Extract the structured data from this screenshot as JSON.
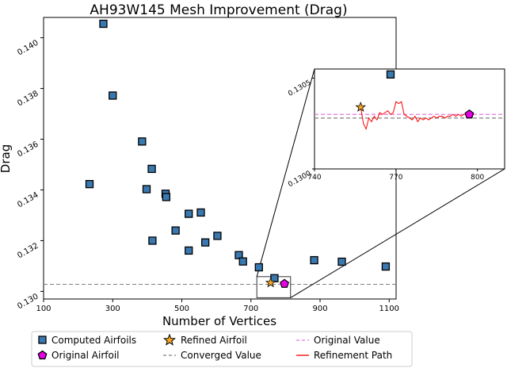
{
  "chart_data": {
    "type": "scatter",
    "title": "AH93W145 Mesh Improvement (Drag)",
    "xlabel": "Number of Vertices",
    "ylabel": "Drag",
    "xlim": [
      100,
      1120
    ],
    "ylim": [
      0.1297,
      0.1408
    ],
    "xticks": [
      100,
      300,
      500,
      700,
      900,
      1100
    ],
    "yticks": [
      0.13,
      0.132,
      0.134,
      0.136,
      0.138,
      0.14
    ],
    "ytick_labels": [
      "0.130",
      "0.132",
      "0.134",
      "0.136",
      "0.138",
      "0.140"
    ],
    "grid": false,
    "legend_position": "bottom",
    "converged_value": 0.13028,
    "original_value": 0.1303,
    "series": [
      {
        "name": "Computed Airfoils",
        "marker": "square",
        "color": "#3a78b0",
        "x": [
          233,
          273,
          300,
          385,
          398,
          413,
          415,
          453,
          455,
          482,
          520,
          520,
          555,
          568,
          603,
          665,
          677,
          723,
          768,
          883,
          963,
          1090
        ],
        "y": [
          0.13423,
          0.14055,
          0.13772,
          0.13591,
          0.13403,
          0.13483,
          0.132,
          0.13385,
          0.13372,
          0.1324,
          0.13306,
          0.13161,
          0.13311,
          0.13193,
          0.13219,
          0.13143,
          0.13118,
          0.13095,
          0.13052,
          0.13123,
          0.13117,
          0.13098
        ]
      },
      {
        "name": "Original Airfoil",
        "marker": "pentagon",
        "color": "#e600e6",
        "x": [
          797
        ],
        "y": [
          0.1303
        ]
      },
      {
        "name": "Refined Airfoil",
        "marker": "star",
        "color": "#f5a623",
        "x": [
          757
        ],
        "y": [
          0.13034
        ]
      }
    ],
    "lines": [
      {
        "name": "Converged Value",
        "style": "dashed",
        "color": "#808080"
      },
      {
        "name": "Original Value",
        "style": "dashed",
        "color": "#e377e3"
      },
      {
        "name": "Refinement Path",
        "style": "solid",
        "color": "#ff0000"
      }
    ],
    "inset": {
      "xlim": [
        740,
        810
      ],
      "ylim": [
        0.13,
        0.13055
      ],
      "xticks": [
        740,
        770,
        800
      ],
      "yticks": [
        0.13,
        0.1305
      ],
      "ytick_labels": [
        "0.1300",
        "0.1305"
      ],
      "converged_value": 0.13028,
      "original_value": 0.1303,
      "refinement_path": {
        "x": [
          757,
          758,
          759,
          760,
          761,
          762,
          763,
          764,
          765,
          766,
          767,
          768,
          769,
          770,
          771,
          772,
          773,
          774,
          775,
          776,
          777,
          778,
          779,
          780,
          781,
          782,
          783,
          784,
          785,
          786,
          787,
          788,
          789,
          790,
          791,
          792,
          793,
          794,
          795,
          796,
          797
        ],
        "y": [
          0.13034,
          0.13025,
          0.13022,
          0.13028,
          0.13026,
          0.13029,
          0.13027,
          0.13031,
          0.1303,
          0.13031,
          0.13032,
          0.1303,
          0.13031,
          0.13037,
          0.13036,
          0.13037,
          0.1303,
          0.13029,
          0.13028,
          0.13027,
          0.13029,
          0.13026,
          0.13028,
          0.13027,
          0.13028,
          0.13027,
          0.13028,
          0.13029,
          0.13028,
          0.13029,
          0.13029,
          0.13028,
          0.13029,
          0.13029,
          0.1303,
          0.13029,
          0.1303,
          0.13029,
          0.1303,
          0.1303,
          0.1303
        ]
      }
    }
  }
}
